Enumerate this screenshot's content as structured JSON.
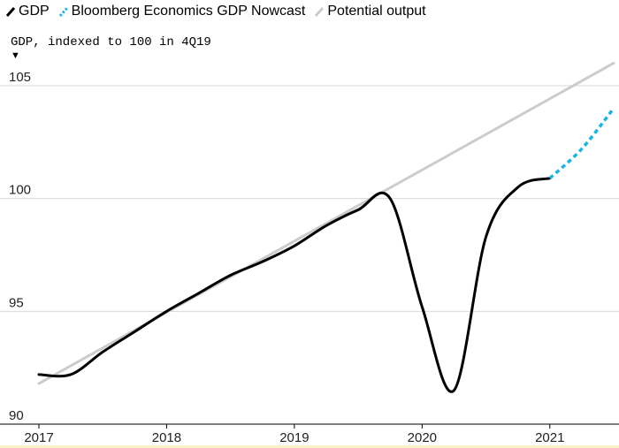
{
  "legend": {
    "gdp": "GDP",
    "nowcast": "Bloomberg Economics GDP Nowcast",
    "potential": "Potential output"
  },
  "chart_data": {
    "type": "line",
    "ylabel": "GDP, indexed to 100 in 4Q19",
    "xlim": [
      2017,
      2021.5
    ],
    "ylim": [
      90,
      106
    ],
    "y_ticks": [
      90,
      95,
      100,
      105
    ],
    "x_ticks": [
      2017,
      2018,
      2019,
      2020,
      2021
    ],
    "grid": true,
    "legend_position": "top-left",
    "series": [
      {
        "name": "GDP",
        "color": "#000000",
        "style": "solid",
        "points": [
          [
            2017.0,
            92.2
          ],
          [
            2017.25,
            92.2
          ],
          [
            2017.5,
            93.2
          ],
          [
            2017.75,
            94.1
          ],
          [
            2018.0,
            95.0
          ],
          [
            2018.25,
            95.8
          ],
          [
            2018.5,
            96.6
          ],
          [
            2018.75,
            97.2
          ],
          [
            2019.0,
            97.9
          ],
          [
            2019.25,
            98.8
          ],
          [
            2019.5,
            99.5
          ],
          [
            2019.75,
            100.0
          ],
          [
            2020.0,
            95.2
          ],
          [
            2020.25,
            91.5
          ],
          [
            2020.5,
            98.3
          ],
          [
            2020.75,
            100.5
          ],
          [
            2021.0,
            100.9
          ]
        ]
      },
      {
        "name": "Bloomberg Economics GDP Nowcast",
        "color": "#1ab3e8",
        "style": "dotted",
        "points": [
          [
            2021.0,
            100.9
          ],
          [
            2021.25,
            102.2
          ],
          [
            2021.5,
            104.0
          ]
        ]
      },
      {
        "name": "Potential output",
        "color": "#cccccc",
        "style": "solid",
        "points": [
          [
            2017.0,
            91.8
          ],
          [
            2021.5,
            106.0
          ]
        ]
      }
    ]
  },
  "colors": {
    "gdp": "#000000",
    "nowcast": "#1ab3e8",
    "potential": "#cccccc",
    "grid": "#d9d9d9",
    "baseline": "#000000",
    "bottom_strip": "#f7f3c6"
  }
}
